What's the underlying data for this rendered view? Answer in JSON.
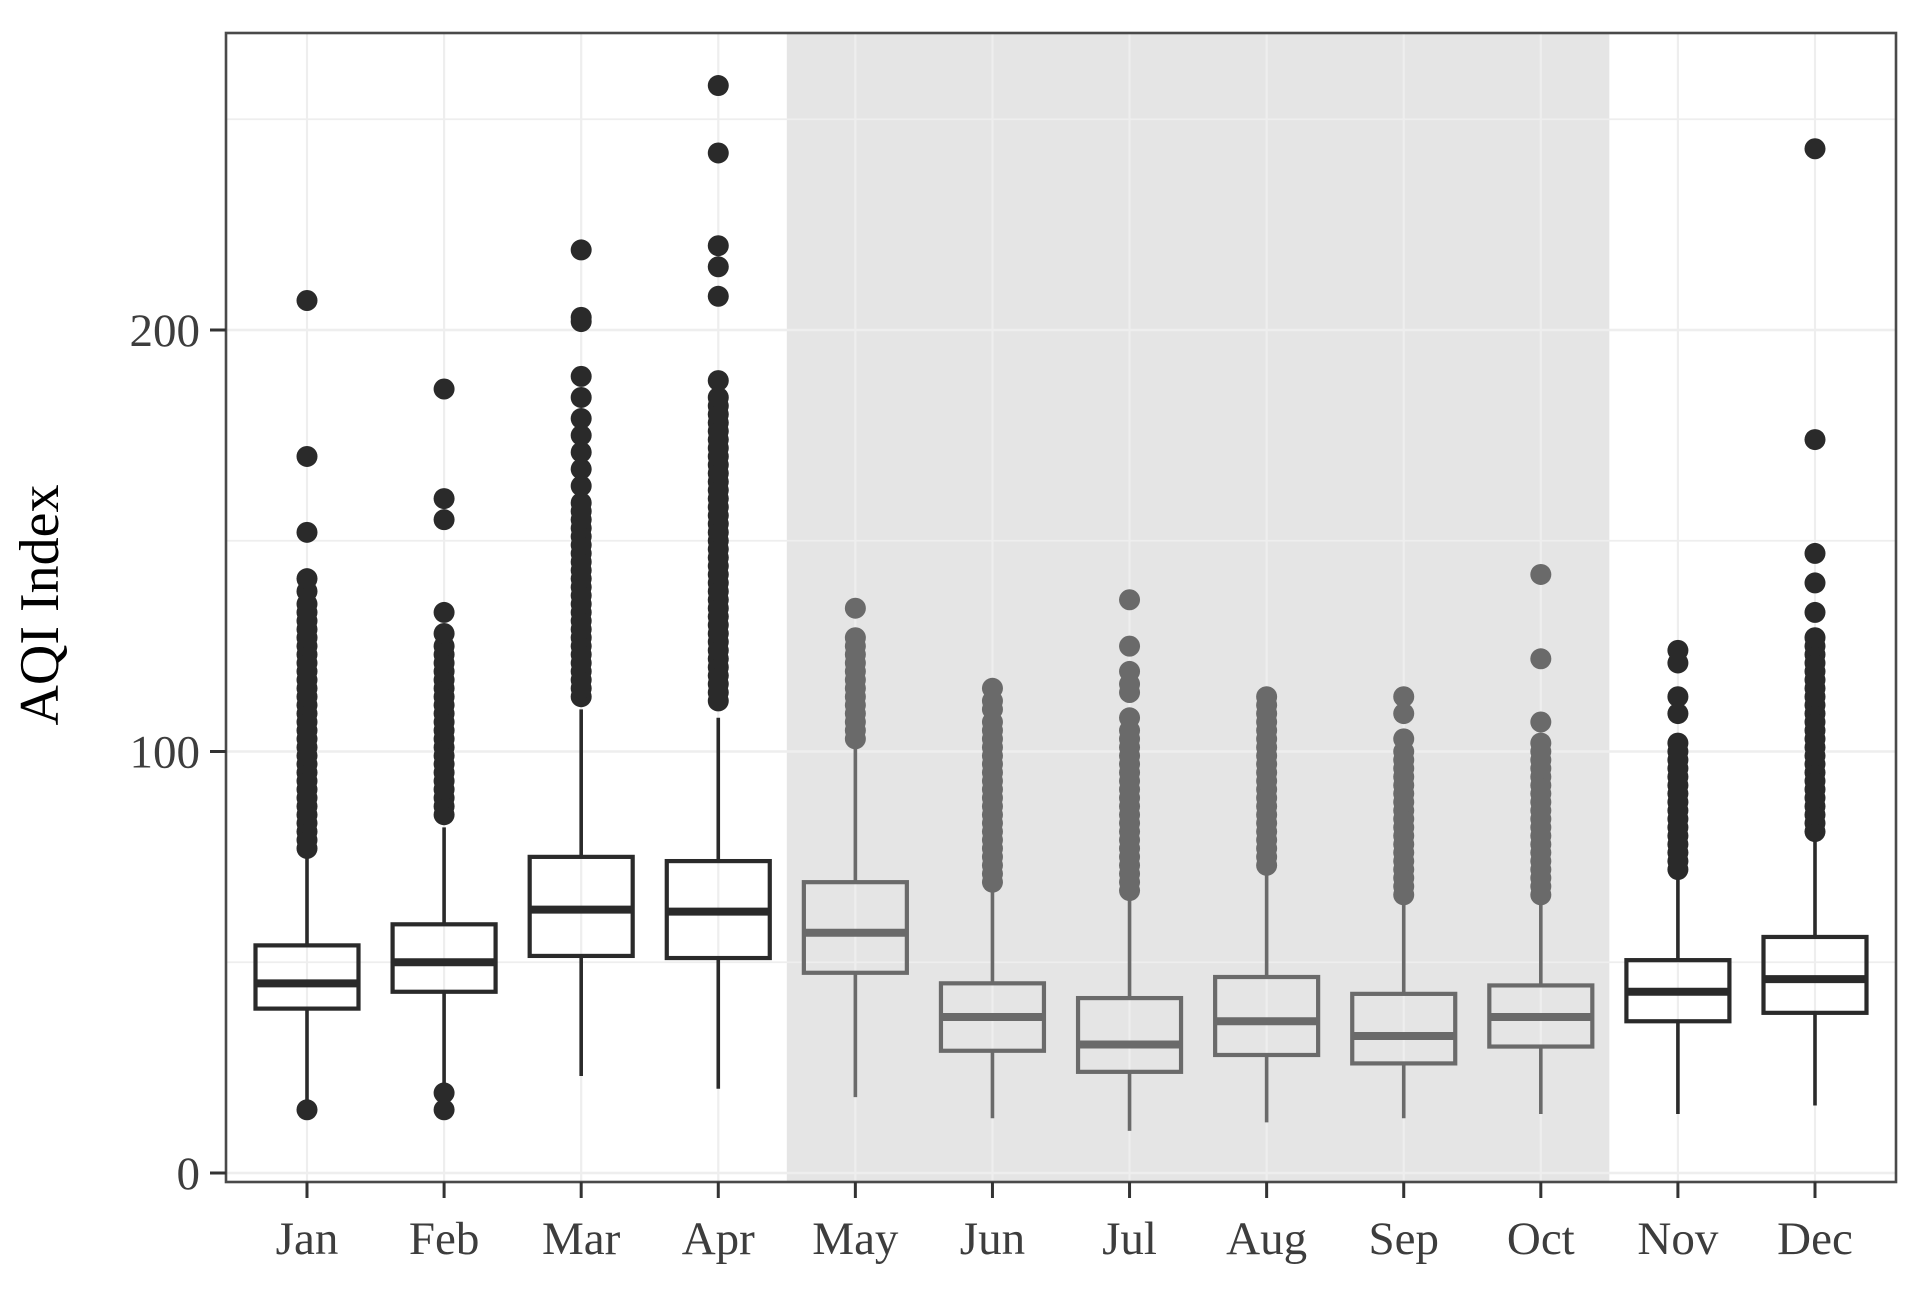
{
  "y_axis": {
    "title": "AQI Index",
    "tick_labels": [
      "0",
      "100",
      "200"
    ],
    "tick_values": [
      0,
      100,
      200
    ],
    "minor_gridline_values": [
      50,
      150,
      250
    ],
    "value_range": [
      -2,
      271
    ]
  },
  "x_axis": {
    "labels": [
      "Jan",
      "Feb",
      "Mar",
      "Apr",
      "May",
      "Jun",
      "Jul",
      "Aug",
      "Sep",
      "Oct",
      "Nov",
      "Dec"
    ]
  },
  "shaded_region": {
    "from_month": "May",
    "to_month": "Oct",
    "fill": "#e5e5e5"
  },
  "colors": {
    "normal_stroke": "#2a2a2a",
    "shaded_stroke": "#6a6a6a",
    "panel_border": "#4a4a4a",
    "gridline": "#eeeeee",
    "tick_mark": "#333333",
    "tick_label": "#3d3d3d",
    "axis_title": "#000000",
    "box_fill": "none",
    "background": "#ffffff"
  },
  "chart_data": {
    "type": "boxplot",
    "title": "",
    "xlabel": "",
    "ylabel": "AQI Index",
    "ylim": [
      -2,
      271
    ],
    "grid": "major-and-minor",
    "legend_position": "none",
    "categories": [
      "Jan",
      "Feb",
      "Mar",
      "Apr",
      "May",
      "Jun",
      "Jul",
      "Aug",
      "Sep",
      "Oct",
      "Nov",
      "Dec"
    ],
    "shaded_categories": [
      "May",
      "Jun",
      "Jul",
      "Aug",
      "Sep",
      "Oct"
    ],
    "series": [
      {
        "month": "Jan",
        "group": "normal",
        "whisker_low": 17,
        "q1": 39,
        "median": 45,
        "q3": 54,
        "whisker_high": 75,
        "outliers_low": [
          15
        ],
        "outliers_high": [
          77,
          79,
          81,
          83,
          85,
          87,
          89,
          91,
          93,
          95,
          97,
          99,
          101,
          103,
          105,
          107,
          109,
          111,
          113,
          115,
          117,
          119,
          121,
          123,
          125,
          127,
          129,
          131,
          133,
          135,
          138,
          141,
          152,
          170,
          207
        ]
      },
      {
        "month": "Feb",
        "group": "normal",
        "whisker_low": 20,
        "q1": 43,
        "median": 50,
        "q3": 59,
        "whisker_high": 82,
        "outliers_low": [
          15,
          19
        ],
        "outliers_high": [
          85,
          87,
          89,
          91,
          93,
          95,
          97,
          99,
          101,
          103,
          105,
          107,
          109,
          111,
          113,
          115,
          117,
          119,
          121,
          123,
          125,
          128,
          133,
          155,
          160,
          186
        ]
      },
      {
        "month": "Mar",
        "group": "normal",
        "whisker_low": 23,
        "q1": 51.5,
        "median": 62.5,
        "q3": 75,
        "whisker_high": 110,
        "outliers_low": [],
        "outliers_high": [
          113,
          115,
          117,
          119,
          121,
          123,
          125,
          127,
          129,
          131,
          133,
          135,
          137,
          139,
          141,
          143,
          145,
          147,
          149,
          151,
          153,
          155,
          157,
          159,
          163,
          167,
          171,
          175,
          179,
          184,
          189,
          202,
          203,
          219
        ]
      },
      {
        "month": "Apr",
        "group": "normal",
        "whisker_low": 20,
        "q1": 51,
        "median": 62,
        "q3": 74,
        "whisker_high": 108,
        "outliers_low": [],
        "outliers_high": [
          112,
          114,
          116,
          118,
          120,
          122,
          124,
          126,
          128,
          130,
          132,
          134,
          136,
          138,
          140,
          142,
          144,
          146,
          148,
          150,
          152,
          154,
          156,
          158,
          160,
          162,
          164,
          166,
          168,
          170,
          172,
          174,
          176,
          178,
          180,
          182,
          184,
          188,
          208,
          215,
          220,
          242,
          258
        ]
      },
      {
        "month": "May",
        "group": "shaded",
        "whisker_low": 18,
        "q1": 47.5,
        "median": 57,
        "q3": 69,
        "whisker_high": 101,
        "outliers_low": [],
        "outliers_high": [
          103,
          105,
          107,
          109,
          111,
          113,
          115,
          117,
          119,
          121,
          123,
          125,
          127,
          134
        ]
      },
      {
        "month": "Jun",
        "group": "shaded",
        "whisker_low": 13,
        "q1": 29,
        "median": 37,
        "q3": 45,
        "whisker_high": 68,
        "outliers_low": [],
        "outliers_high": [
          69,
          71,
          73,
          75,
          77,
          79,
          81,
          83,
          85,
          87,
          89,
          91,
          93,
          95,
          97,
          99,
          101,
          103,
          105,
          107,
          110,
          112,
          115
        ]
      },
      {
        "month": "Jul",
        "group": "shaded",
        "whisker_low": 10,
        "q1": 24,
        "median": 30.5,
        "q3": 41.5,
        "whisker_high": 66,
        "outliers_low": [],
        "outliers_high": [
          67,
          69,
          71,
          73,
          75,
          77,
          79,
          81,
          83,
          85,
          87,
          89,
          91,
          93,
          95,
          97,
          99,
          101,
          103,
          105,
          108,
          114,
          116,
          119,
          125,
          136
        ]
      },
      {
        "month": "Aug",
        "group": "shaded",
        "whisker_low": 12,
        "q1": 28,
        "median": 36,
        "q3": 46.5,
        "whisker_high": 72,
        "outliers_low": [],
        "outliers_high": [
          73,
          75,
          77,
          79,
          81,
          83,
          85,
          87,
          89,
          91,
          93,
          95,
          97,
          99,
          101,
          103,
          105,
          107,
          109,
          111,
          113
        ]
      },
      {
        "month": "Sep",
        "group": "shaded",
        "whisker_low": 13,
        "q1": 26,
        "median": 32.5,
        "q3": 42.5,
        "whisker_high": 65,
        "outliers_low": [],
        "outliers_high": [
          66,
          68,
          70,
          72,
          74,
          76,
          78,
          80,
          82,
          84,
          86,
          88,
          90,
          92,
          94,
          96,
          98,
          100,
          103,
          109,
          113
        ]
      },
      {
        "month": "Oct",
        "group": "shaded",
        "whisker_low": 14,
        "q1": 30,
        "median": 37,
        "q3": 44.5,
        "whisker_high": 65,
        "outliers_low": [],
        "outliers_high": [
          66,
          68,
          70,
          72,
          74,
          76,
          78,
          80,
          82,
          84,
          86,
          88,
          90,
          92,
          94,
          96,
          98,
          100,
          102,
          107,
          122,
          142
        ]
      },
      {
        "month": "Nov",
        "group": "normal",
        "whisker_low": 14,
        "q1": 36,
        "median": 43,
        "q3": 50.5,
        "whisker_high": 71,
        "outliers_low": [],
        "outliers_high": [
          72,
          74,
          76,
          78,
          80,
          82,
          84,
          86,
          88,
          90,
          92,
          94,
          96,
          98,
          100,
          102,
          109,
          113,
          121,
          124
        ]
      },
      {
        "month": "Dec",
        "group": "normal",
        "whisker_low": 16,
        "q1": 38,
        "median": 46,
        "q3": 56,
        "whisker_high": 80,
        "outliers_low": [],
        "outliers_high": [
          81,
          83,
          85,
          87,
          89,
          91,
          93,
          95,
          97,
          99,
          101,
          103,
          105,
          107,
          109,
          111,
          113,
          115,
          117,
          119,
          121,
          123,
          125,
          127,
          133,
          140,
          147,
          174,
          243
        ]
      }
    ]
  }
}
